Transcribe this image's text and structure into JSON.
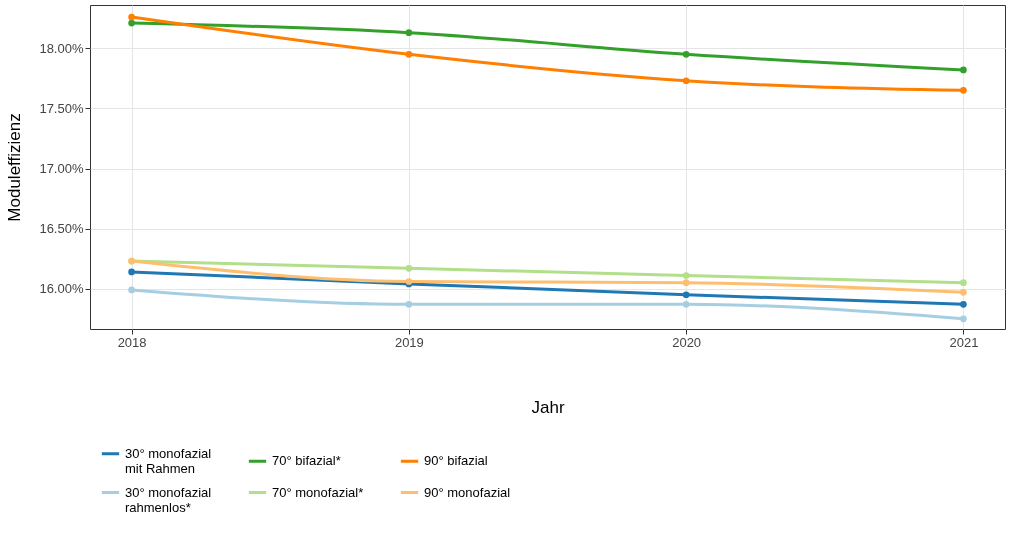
{
  "chart_data": {
    "type": "line",
    "xlabel": "Jahr",
    "ylabel": "Moduleffizienz",
    "x": [
      2018,
      2019,
      2020,
      2021
    ],
    "xlim": [
      2017.85,
      2021.15
    ],
    "xticks": [
      2018,
      2019,
      2020,
      2021
    ],
    "ylim": [
      15.665,
      18.36
    ],
    "yticks": [
      {
        "value": 16,
        "label": "16.00%"
      },
      {
        "value": 16.5,
        "label": "16.50%"
      },
      {
        "value": 17,
        "label": "17.00%"
      },
      {
        "value": 17.5,
        "label": "17.50%"
      },
      {
        "value": 18,
        "label": "18.00%"
      }
    ],
    "grid": true,
    "legend": "bottom",
    "marker": "circle",
    "line_style": "solid",
    "series": [
      {
        "name": "30° monofazial\nmit Rahmen",
        "color": "#1f78b4",
        "values": [
          16.14,
          16.04,
          15.95,
          15.87
        ]
      },
      {
        "name": "30° monofazial\nrahmenlos*",
        "color": "#a6cee3",
        "values": [
          15.99,
          15.87,
          15.87,
          15.75
        ]
      },
      {
        "name": "70° bifazial*",
        "color": "#33a02c",
        "values": [
          18.21,
          18.13,
          17.95,
          17.82
        ]
      },
      {
        "name": "70° monofazial*",
        "color": "#b2df8a",
        "values": [
          16.23,
          16.17,
          16.11,
          16.05
        ]
      },
      {
        "name": "90° bifazial",
        "color": "#ff7f00",
        "values": [
          18.26,
          17.95,
          17.73,
          17.65
        ]
      },
      {
        "name": "90° monofazial",
        "color": "#fdbf6f",
        "values": [
          16.23,
          16.06,
          16.05,
          15.97
        ]
      }
    ]
  }
}
